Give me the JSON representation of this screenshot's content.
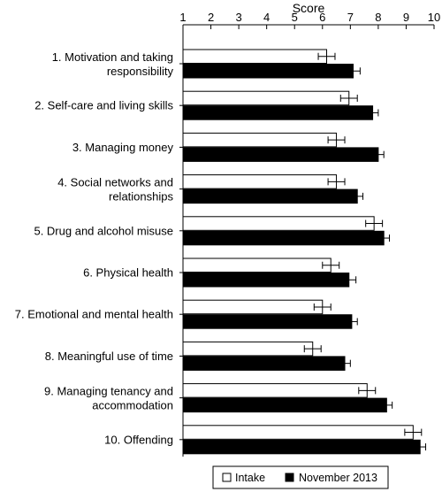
{
  "chart_data": {
    "type": "bar",
    "orientation": "horizontal",
    "title": "",
    "xlabel": "Score",
    "ylabel": "",
    "xlim": [
      1,
      10
    ],
    "xticks": [
      1,
      2,
      3,
      4,
      5,
      6,
      7,
      8,
      9,
      10
    ],
    "categories": [
      [
        "1. Motivation and taking",
        "responsibility"
      ],
      [
        "2. Self-care and living skills"
      ],
      [
        "3. Managing money"
      ],
      [
        "4. Social networks and",
        "relationships"
      ],
      [
        "5. Drug and alcohol misuse"
      ],
      [
        "6. Physical health"
      ],
      [
        "7. Emotional and mental health"
      ],
      [
        "8. Meaningful use of time"
      ],
      [
        "9. Managing tenancy and",
        "accommodation"
      ],
      [
        "10. Offending"
      ]
    ],
    "series": [
      {
        "name": "Intake",
        "color": "#ffffff",
        "values": [
          6.15,
          6.95,
          6.5,
          6.5,
          7.85,
          6.3,
          6.0,
          5.65,
          7.6,
          9.25
        ],
        "error": [
          0.3,
          0.3,
          0.3,
          0.3,
          0.3,
          0.3,
          0.3,
          0.3,
          0.3,
          0.3
        ]
      },
      {
        "name": "November 2013",
        "color": "#000000",
        "values": [
          7.1,
          7.8,
          8.0,
          7.25,
          8.2,
          6.95,
          7.05,
          6.8,
          8.3,
          9.5
        ],
        "error": [
          0.25,
          0.2,
          0.2,
          0.2,
          0.2,
          0.25,
          0.2,
          0.2,
          0.2,
          0.2
        ]
      }
    ],
    "legend": {
      "position": "bottom-right"
    },
    "grid": false
  }
}
